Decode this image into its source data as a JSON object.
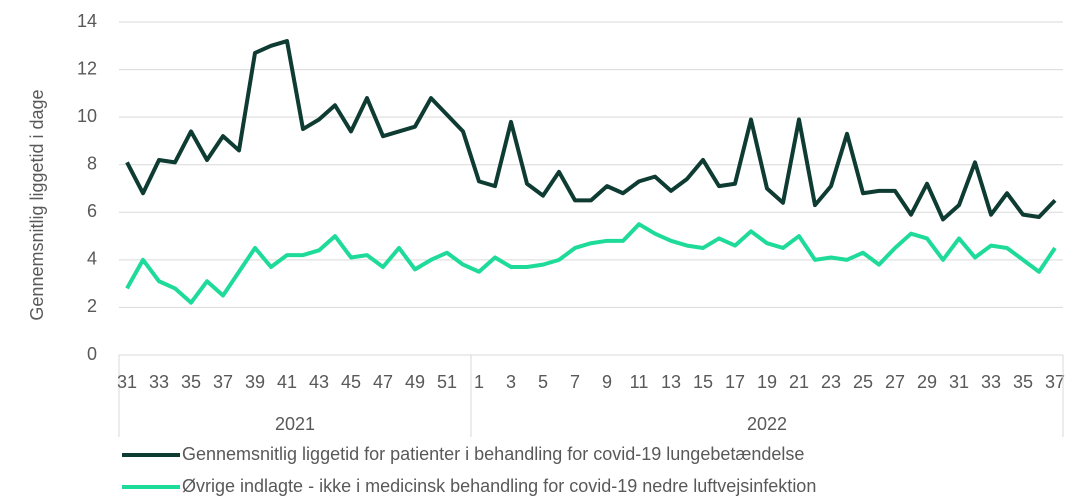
{
  "chart_data": {
    "type": "line",
    "y_label": "Gennemsnitlig liggetid i dage",
    "groups": [
      {
        "name": "2021",
        "categories": [
          "31",
          null,
          "33",
          null,
          "35",
          null,
          "37",
          null,
          "39",
          null,
          "41",
          null,
          "43",
          null,
          "45",
          null,
          "47",
          null,
          "49",
          null,
          "51",
          null
        ]
      },
      {
        "name": "2022",
        "categories": [
          "1",
          null,
          "3",
          null,
          "5",
          null,
          "7",
          null,
          "9",
          null,
          "11",
          null,
          "13",
          null,
          "15",
          null,
          "17",
          null,
          "19",
          null,
          "21",
          null,
          "23",
          null,
          "25",
          null,
          "27",
          null,
          "29",
          null,
          "31",
          null,
          "33",
          null,
          "35",
          null,
          "37"
        ]
      }
    ],
    "series": [
      {
        "name": "Gennemsnitlig liggetid for patienter i behandling for covid-19 lungebetændelse",
        "color": "#0e3b32",
        "values": [
          8.1,
          6.8,
          8.2,
          8.1,
          9.4,
          8.2,
          9.2,
          8.6,
          12.7,
          13.0,
          13.2,
          9.5,
          9.9,
          10.5,
          9.4,
          10.8,
          9.2,
          9.4,
          9.6,
          10.8,
          10.1,
          9.4,
          7.3,
          7.1,
          9.8,
          7.2,
          6.7,
          7.7,
          6.5,
          6.5,
          7.1,
          6.8,
          7.3,
          7.5,
          6.9,
          7.4,
          8.2,
          7.1,
          7.2,
          9.9,
          7.0,
          6.4,
          9.9,
          6.3,
          7.1,
          9.3,
          6.8,
          6.9,
          6.9,
          5.9,
          7.2,
          5.7,
          6.3,
          8.1,
          5.9,
          6.8,
          5.9,
          5.8,
          6.5
        ]
      },
      {
        "name": "Øvrige indlagte - ikke i medicinsk behandling for covid-19 nedre luftvejsinfektion",
        "color": "#1fdb9a",
        "values": [
          2.8,
          4.0,
          3.1,
          2.8,
          2.2,
          3.1,
          2.5,
          3.5,
          4.5,
          3.7,
          4.2,
          4.2,
          4.4,
          5.0,
          4.1,
          4.2,
          3.7,
          4.5,
          3.6,
          4.0,
          4.3,
          3.8,
          3.5,
          4.1,
          3.7,
          3.7,
          3.8,
          4.0,
          4.5,
          4.7,
          4.8,
          4.8,
          5.5,
          5.1,
          4.8,
          4.6,
          4.5,
          4.9,
          4.6,
          5.2,
          4.7,
          4.5,
          5.0,
          4.0,
          4.1,
          4.0,
          4.3,
          3.8,
          4.5,
          5.1,
          4.9,
          4.0,
          4.9,
          4.1,
          4.6,
          4.5,
          4.0,
          3.5,
          4.5
        ]
      }
    ],
    "ylim": [
      0,
      14
    ],
    "yticks": [
      0,
      2,
      4,
      6,
      8,
      10,
      12,
      14
    ],
    "grid": true
  }
}
